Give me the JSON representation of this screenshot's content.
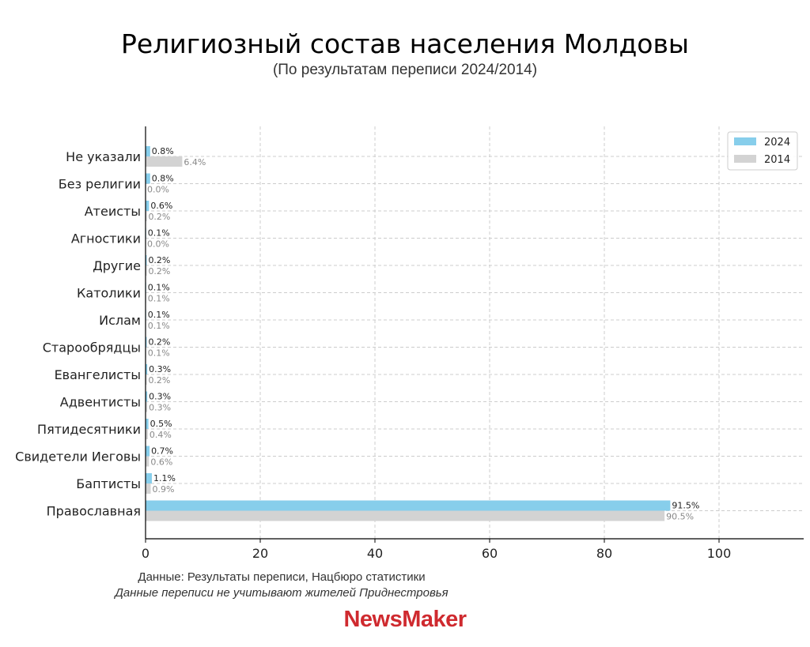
{
  "title": "Религиозный состав населения Молдовы",
  "subtitle": "(По результатам переписи 2024/2014)",
  "notes": {
    "source": "Данные: Результаты переписи, Нацбюро статистики",
    "disclaimer": "Данные переписи не учитывают жителей Приднестровья"
  },
  "logo_text": "NewsMaker",
  "colors": {
    "series_2024": "#87ceeb",
    "series_2014": "#d3d3d3",
    "logo": "#cf2a2f",
    "grid": "#cccccc"
  },
  "chart_data": {
    "type": "bar",
    "orientation": "horizontal",
    "categories": [
      "Не указали",
      "Без религии",
      "Атеисты",
      "Агностики",
      "Другие",
      "Католики",
      "Ислам",
      "Старообрядцы",
      "Евангелисты",
      "Адвентисты",
      "Пятидесятники",
      "Свидетели Иеговы",
      "Баптисты",
      "Православная"
    ],
    "series": [
      {
        "name": "2024",
        "values": [
          0.8,
          0.8,
          0.6,
          0.1,
          0.2,
          0.1,
          0.1,
          0.2,
          0.3,
          0.3,
          0.5,
          0.7,
          1.1,
          91.5
        ],
        "labels": [
          "0.8%",
          "0.8%",
          "0.6%",
          "0.1%",
          "0.2%",
          "0.1%",
          "0.1%",
          "0.2%",
          "0.3%",
          "0.3%",
          "0.5%",
          "0.7%",
          "1.1%",
          "91.5%"
        ]
      },
      {
        "name": "2014",
        "values": [
          6.4,
          0.0,
          0.2,
          0.0,
          0.2,
          0.1,
          0.1,
          0.1,
          0.2,
          0.3,
          0.4,
          0.6,
          0.9,
          90.5
        ],
        "labels": [
          "6.4%",
          "0.0%",
          "0.2%",
          "0.0%",
          "0.2%",
          "0.1%",
          "0.1%",
          "0.1%",
          "0.2%",
          "0.3%",
          "0.4%",
          "0.6%",
          "0.9%",
          "90.5%"
        ]
      }
    ],
    "xticks": [
      "0",
      "20",
      "40",
      "60",
      "80",
      "100"
    ],
    "xlim": [
      0,
      115
    ],
    "grid": true,
    "legend_position": "top-right"
  }
}
